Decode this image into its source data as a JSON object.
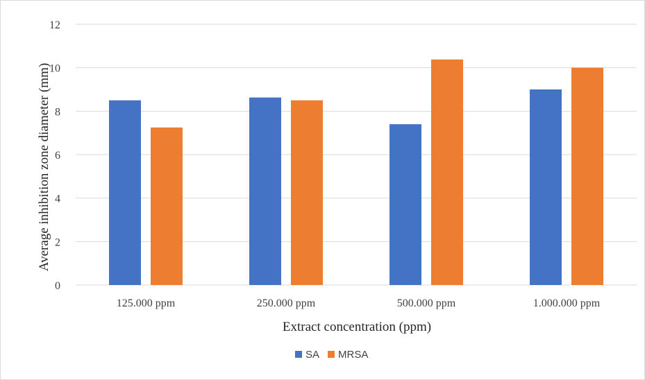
{
  "chart_data": {
    "type": "bar",
    "title": "",
    "xlabel": "Extract concentration (ppm)",
    "ylabel": "Average inhibition zone diameter (mm)",
    "categories": [
      "125.000 ppm",
      "250.000 ppm",
      "500.000 ppm",
      "1.000.000 ppm"
    ],
    "series": [
      {
        "name": "SA",
        "values": [
          8.5,
          8.63,
          7.4,
          9.0
        ],
        "color": "#4472C4"
      },
      {
        "name": "MRSA",
        "values": [
          7.25,
          8.5,
          10.38,
          10.0
        ],
        "color": "#ED7D31"
      }
    ],
    "ylim": [
      0,
      12
    ],
    "yticks": [
      "0",
      "2",
      "4",
      "6",
      "8",
      "10",
      "12"
    ],
    "grid": true,
    "legend_position": "bottom"
  }
}
